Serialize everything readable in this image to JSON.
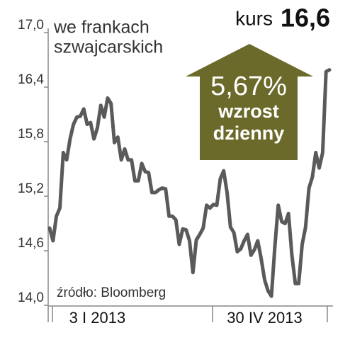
{
  "chart_data": {
    "type": "line",
    "title_lines": [
      "we frankach",
      "szwajcarskich"
    ],
    "current_label": "kurs",
    "current_value": "16,6",
    "annotation_lines": [
      "5,67%",
      "wzrost",
      "dzienny"
    ],
    "source": "źródło: Bloomberg",
    "categories": [
      null,
      null,
      null,
      null,
      null,
      null,
      null,
      null,
      null,
      null,
      null,
      null,
      null,
      null,
      "3 I 2013",
      null,
      null,
      null,
      null,
      null,
      null,
      null,
      null,
      null,
      null,
      null,
      null,
      null,
      null,
      null,
      null,
      null,
      null,
      null,
      null,
      null,
      null,
      null,
      null,
      null,
      null,
      null,
      null,
      null,
      null,
      null,
      null,
      null,
      null,
      null,
      null,
      null,
      null,
      null,
      null,
      null,
      null,
      null,
      null,
      null,
      null,
      null,
      null,
      "30 IV 2013",
      null,
      null,
      null,
      null,
      null,
      null,
      null,
      null,
      null,
      null,
      null,
      null,
      null,
      null,
      null,
      null,
      null,
      null,
      null
    ],
    "series": [
      {
        "color": "#5a5a5a",
        "values": [
          14.85,
          14.71,
          14.98,
          15.07,
          15.68,
          15.6,
          15.83,
          15.99,
          16.07,
          16.08,
          16.16,
          15.99,
          16.01,
          15.83,
          15.95,
          16.2,
          16.07,
          16.28,
          16.22,
          15.79,
          15.85,
          15.6,
          15.72,
          15.6,
          15.6,
          15.37,
          15.37,
          15.56,
          15.47,
          15.46,
          15.24,
          15.24,
          15.27,
          15.29,
          15.28,
          14.98,
          14.98,
          14.94,
          14.67,
          14.84,
          14.83,
          14.71,
          14.36,
          14.72,
          14.78,
          14.85,
          15.1,
          15.07,
          15.11,
          15.1,
          15.39,
          15.48,
          15.24,
          14.86,
          14.8,
          14.59,
          14.62,
          14.71,
          14.78,
          14.55,
          14.61,
          14.71,
          14.51,
          14.28,
          14.16,
          14.1,
          14.64,
          15.1,
          14.92,
          14.9,
          15.01,
          14.55,
          14.24,
          14.24,
          14.67,
          14.86,
          15.29,
          15.41,
          15.68,
          15.51,
          15.68,
          16.57,
          16.59
        ]
      }
    ],
    "ylim": [
      14.0,
      17.0
    ],
    "yticks": [
      {
        "value": 14.0,
        "label": "14,0"
      },
      {
        "value": 14.6,
        "label": "14,6"
      },
      {
        "value": 15.2,
        "label": "15,2"
      },
      {
        "value": 15.8,
        "label": "15,8"
      },
      {
        "value": 16.4,
        "label": "16,4"
      },
      {
        "value": 17.0,
        "label": "17,0"
      }
    ],
    "annotation_color": "#6b6a2a"
  }
}
